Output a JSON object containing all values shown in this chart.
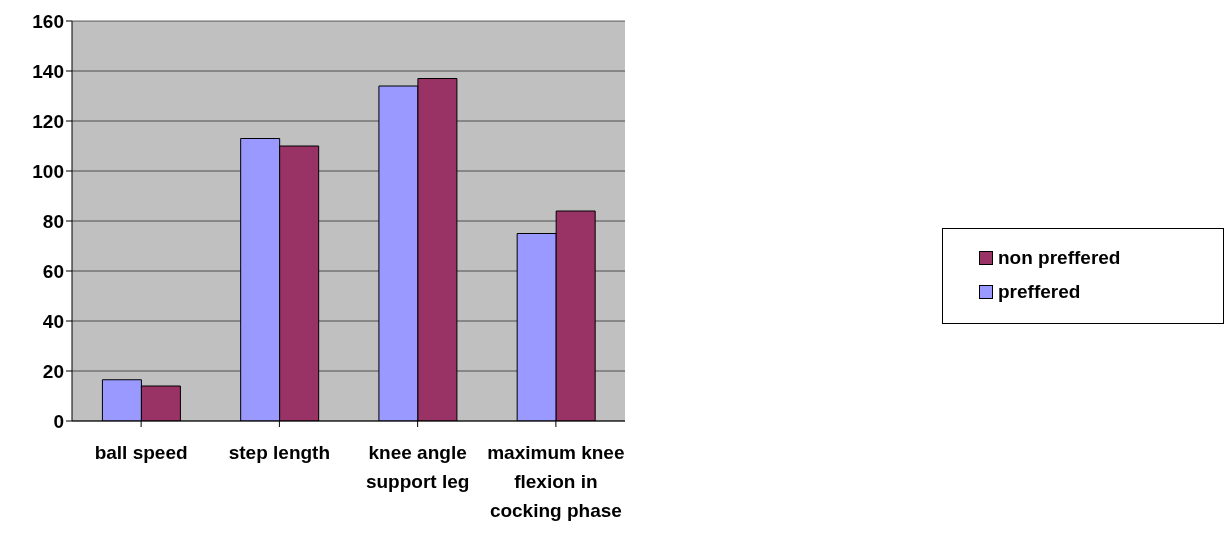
{
  "chart_data": {
    "type": "bar",
    "categories": [
      "ball speed",
      "step length",
      "knee angle support leg",
      "maximum knee flexion in cocking phase"
    ],
    "series": [
      {
        "name": "preffered",
        "color": "#9999ff",
        "values": [
          16.5,
          113,
          134,
          75
        ]
      },
      {
        "name": "non preffered",
        "color": "#993366",
        "values": [
          14,
          110,
          137,
          84
        ]
      }
    ],
    "ylim": [
      0,
      160
    ],
    "yticks": [
      0,
      20,
      40,
      60,
      80,
      100,
      120,
      140,
      160
    ],
    "grid": "y",
    "legend": "right"
  }
}
